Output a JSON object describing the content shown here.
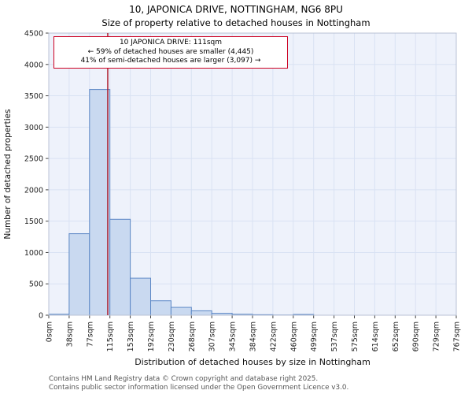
{
  "header": {
    "title": "10, JAPONICA DRIVE, NOTTINGHAM, NG6 8PU",
    "subtitle": "Size of property relative to detached houses in Nottingham"
  },
  "chart_data": {
    "type": "bar",
    "title": "10, JAPONICA DRIVE, NOTTINGHAM, NG6 8PU",
    "subtitle": "Size of property relative to detached houses in Nottingham",
    "xlabel": "Distribution of detached houses by size in Nottingham",
    "ylabel": "Number of detached properties",
    "ylim": [
      0,
      4500
    ],
    "ytick_step": 500,
    "grid": true,
    "legend_position": "none",
    "bin_edges_labels": [
      "0sqm",
      "38sqm",
      "77sqm",
      "115sqm",
      "153sqm",
      "192sqm",
      "230sqm",
      "268sqm",
      "307sqm",
      "345sqm",
      "384sqm",
      "422sqm",
      "460sqm",
      "499sqm",
      "537sqm",
      "575sqm",
      "614sqm",
      "652sqm",
      "690sqm",
      "729sqm",
      "767sqm"
    ],
    "values": [
      15,
      1300,
      3600,
      1530,
      590,
      230,
      125,
      70,
      30,
      15,
      8,
      3,
      12,
      0,
      0,
      0,
      0,
      0,
      0,
      0
    ],
    "marker": {
      "label": "10 JAPONICA DRIVE",
      "value_sqm": 111,
      "axis_max_sqm": 767,
      "color": "#aa1122"
    },
    "annotation": {
      "lines": [
        "10 JAPONICA DRIVE: 111sqm",
        "← 59% of detached houses are smaller (4,445)",
        "41% of semi-detached houses are larger (3,097) →"
      ],
      "border_color": "#cc0022"
    },
    "colors": {
      "bar_fill": "#c9d9f0",
      "bar_stroke": "#5b87c5",
      "plot_bg": "#eef2fb",
      "grid": "#d9e2f3",
      "frame": "#b9c2d4",
      "tick": "#444444"
    }
  },
  "footer": {
    "lines": [
      "Contains HM Land Registry data © Crown copyright and database right 2025.",
      "Contains public sector information licensed under the Open Government Licence v3.0."
    ]
  }
}
